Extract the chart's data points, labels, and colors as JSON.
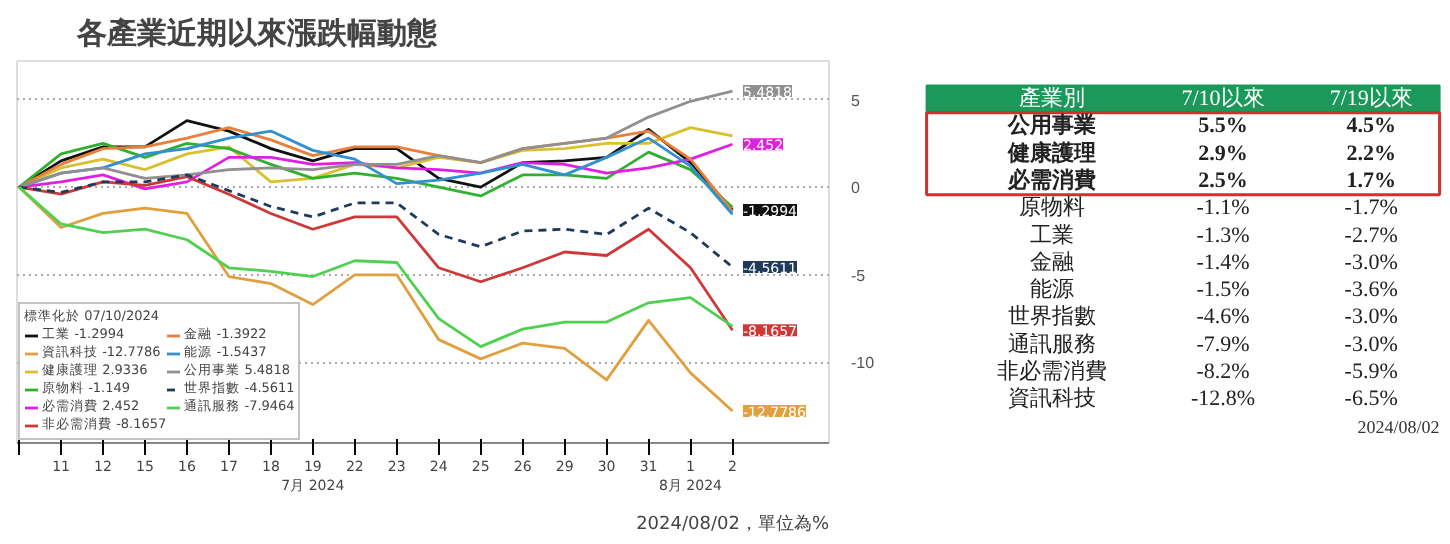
{
  "chart_data": [
    {
      "type": "line",
      "title": "各產業近期以來漲跌幅動態",
      "legend_title": "標準化於 07/10/2024",
      "categories": [
        null,
        "11",
        "12",
        "15",
        "16",
        "17",
        "18",
        "19\n7月 2024",
        "22",
        "23",
        "24",
        "25",
        "26",
        "29",
        "30",
        "31",
        "1\n8月 2024",
        "2"
      ],
      "ylim": [
        -14.6,
        7.2
      ],
      "yticks": [
        5,
        0,
        -5,
        -10
      ],
      "grid": "y",
      "legend": "bottom left",
      "marker": "none",
      "annotations": [
        "2024/08/02，單位為%"
      ],
      "series": [
        {
          "name": "工業 -1.2994",
          "color": "#111111",
          "values": [
            0,
            1.5,
            2.3,
            2.3,
            3.8,
            3.2,
            2.2,
            1.5,
            2.2,
            2.2,
            0.5,
            0,
            1.4,
            1.5,
            1.7,
            3.3,
            1.4,
            -1.2994
          ],
          "value_labels": [
            null,
            null,
            null,
            null,
            null,
            null,
            null,
            null,
            null,
            null,
            null,
            null,
            null,
            null,
            null,
            null,
            null,
            "-1.2994"
          ]
        },
        {
          "name": "資訊科技 -12.7786",
          "color": "#e0a040",
          "values": [
            0,
            -2.3,
            -1.5,
            -1.2,
            -1.5,
            -5.1,
            -5.5,
            -6.7,
            -5.0,
            -5.0,
            -8.7,
            -9.8,
            -8.9,
            -9.2,
            -11.0,
            -7.6,
            -10.6,
            -12.7786
          ],
          "value_labels": [
            null,
            null,
            null,
            null,
            null,
            null,
            null,
            null,
            null,
            null,
            null,
            null,
            null,
            null,
            null,
            null,
            null,
            "-12.7786"
          ]
        },
        {
          "name": "健康護理 2.9336",
          "color": "#d8c030",
          "values": [
            0,
            1.1,
            1.6,
            1.0,
            1.9,
            2.3,
            0.3,
            0.5,
            1.3,
            1.1,
            1.7,
            1.4,
            2.1,
            2.2,
            2.5,
            2.5,
            3.4,
            2.9336
          ]
        },
        {
          "name": "原物料 -1.149",
          "color": "#30b030",
          "values": [
            0,
            1.9,
            2.5,
            1.7,
            2.5,
            2.2,
            1.3,
            0.5,
            0.8,
            0.5,
            0,
            -0.5,
            0.7,
            0.7,
            0.5,
            2.0,
            1.0,
            -1.149
          ]
        },
        {
          "name": "必需消費 2.452",
          "color": "#e020e0",
          "values": [
            0,
            0.3,
            0.7,
            -0.1,
            0.3,
            1.7,
            1.7,
            1.3,
            1.4,
            1.1,
            1.0,
            0.8,
            1.4,
            1.3,
            0.8,
            1.1,
            1.6,
            2.452
          ],
          "value_labels": [
            null,
            null,
            null,
            null,
            null,
            null,
            null,
            null,
            null,
            null,
            null,
            null,
            null,
            null,
            null,
            null,
            null,
            "2.452"
          ]
        },
        {
          "name": "非必需消費 -8.1657",
          "color": "#d03838",
          "values": [
            0,
            -0.4,
            0.3,
            0.1,
            0.6,
            -0.4,
            -1.5,
            -2.4,
            -1.7,
            -1.7,
            -4.6,
            -5.4,
            -4.6,
            -3.7,
            -3.9,
            -2.4,
            -4.6,
            -8.1657
          ],
          "value_labels": [
            null,
            null,
            null,
            null,
            null,
            null,
            null,
            null,
            null,
            null,
            null,
            null,
            null,
            null,
            null,
            null,
            null,
            "-8.1657"
          ]
        },
        {
          "name": "金融 -1.3922",
          "color": "#e8803a",
          "values": [
            0,
            1.3,
            2.2,
            2.3,
            2.8,
            3.4,
            2.7,
            1.8,
            2.3,
            2.3,
            1.8,
            1.4,
            2.2,
            2.5,
            2.8,
            3.2,
            1.6,
            -1.3922
          ]
        },
        {
          "name": "能源 -1.5437",
          "color": "#3090d0",
          "values": [
            0,
            0.8,
            1.1,
            1.9,
            2.2,
            2.8,
            3.2,
            2.1,
            1.6,
            0.2,
            0.4,
            0.8,
            1.3,
            0.7,
            1.7,
            2.8,
            1.2,
            -1.5437
          ]
        },
        {
          "name": "公用事業 5.4818",
          "color": "#909090",
          "values": [
            0,
            0.8,
            1.1,
            0.5,
            0.7,
            1.0,
            1.1,
            1.0,
            1.3,
            1.3,
            1.8,
            1.4,
            2.2,
            2.5,
            2.8,
            4.0,
            4.9,
            5.4818
          ],
          "value_labels": [
            null,
            null,
            null,
            null,
            null,
            null,
            null,
            null,
            null,
            null,
            null,
            null,
            null,
            null,
            null,
            null,
            null,
            "5.4818"
          ]
        },
        {
          "name": "世界指數 -4.5611",
          "color": "#1f3b5c",
          "line_style": "dashed",
          "values": [
            0,
            -0.3,
            0.3,
            0.3,
            0.7,
            -0.2,
            -1.1,
            -1.7,
            -0.9,
            -0.9,
            -2.7,
            -3.4,
            -2.5,
            -2.4,
            -2.7,
            -1.2,
            -2.6,
            -4.5611
          ],
          "value_labels": [
            null,
            null,
            null,
            null,
            null,
            null,
            null,
            null,
            null,
            null,
            null,
            null,
            null,
            null,
            null,
            null,
            null,
            "-4.5611"
          ]
        },
        {
          "name": "通訊服務 -7.9464",
          "color": "#50d050",
          "values": [
            0,
            -2.1,
            -2.6,
            -2.4,
            -3.0,
            -4.6,
            -4.8,
            -5.1,
            -4.2,
            -4.3,
            -7.5,
            -9.1,
            -8.1,
            -7.7,
            -7.7,
            -6.6,
            -6.3,
            -7.9464
          ]
        }
      ]
    },
    {
      "type": "heatmap",
      "ylabel": "產業別",
      "categories": [
        "7/10以來",
        "7/19以來"
      ],
      "y_categories": [
        "公用事業",
        "健康護理",
        "必需消費",
        "原物料",
        "工業",
        "金融",
        "能源",
        "世界指數",
        "通訊服務",
        "非必需消費",
        "資訊科技"
      ],
      "cells": [
        [
          5.5,
          4.5
        ],
        [
          2.9,
          2.2
        ],
        [
          2.5,
          1.7
        ],
        [
          -1.1,
          -1.7
        ],
        [
          -1.3,
          -2.7
        ],
        [
          -1.4,
          -3.0
        ],
        [
          -1.5,
          -3.6
        ],
        [
          -4.6,
          -3.0
        ],
        [
          -7.9,
          -3.0
        ],
        [
          -8.2,
          -5.9
        ],
        [
          -12.8,
          -6.5
        ]
      ],
      "cell_labels": [
        [
          "5.5%",
          "4.5%"
        ],
        [
          "2.9%",
          "2.2%"
        ],
        [
          "2.5%",
          "1.7%"
        ],
        [
          "-1.1%",
          "-1.7%"
        ],
        [
          "-1.3%",
          "-2.7%"
        ],
        [
          "-1.4%",
          "-3.0%"
        ],
        [
          "-1.5%",
          "-3.6%"
        ],
        [
          "-4.6%",
          "-3.0%"
        ],
        [
          "-7.9%",
          "-3.0%"
        ],
        [
          "-8.2%",
          "-5.9%"
        ],
        [
          "-12.8%",
          "-6.5%"
        ]
      ],
      "annotations": [
        "2024/08/02"
      ]
    }
  ]
}
